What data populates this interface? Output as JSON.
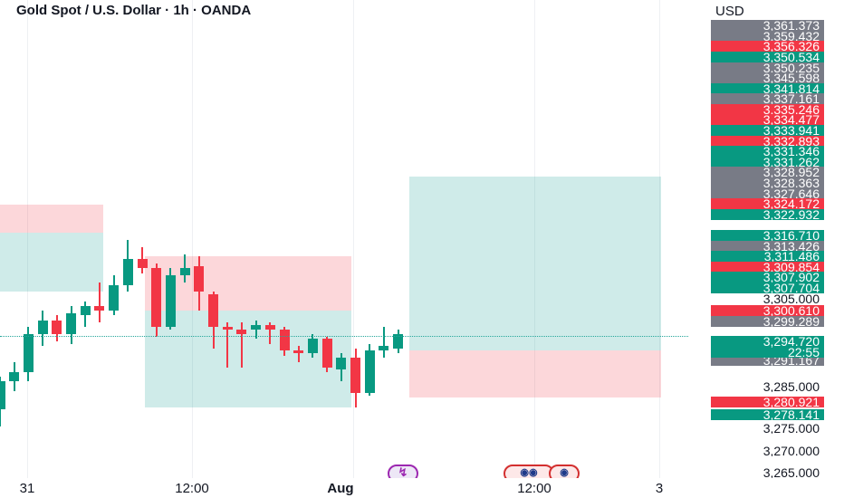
{
  "header": {
    "title": "Gold Spot / U.S. Dollar · 1h · OANDA"
  },
  "price_axis": {
    "currency": "USD",
    "labels": [
      {
        "text": "3,361.373",
        "kind": "gray"
      },
      {
        "text": "3,359.432",
        "kind": "gray"
      },
      {
        "text": "3,356.326",
        "kind": "red"
      },
      {
        "text": "3,350.534",
        "kind": "green"
      },
      {
        "text": "3,350.235",
        "kind": "gray"
      },
      {
        "text": "3,345.598",
        "kind": "gray"
      },
      {
        "text": "3,341.814",
        "kind": "green"
      },
      {
        "text": "3,337.161",
        "kind": "gray"
      },
      {
        "text": "3,335.246",
        "kind": "red"
      },
      {
        "text": "3,334.477",
        "kind": "red"
      },
      {
        "text": "3,333.941",
        "kind": "green"
      },
      {
        "text": "3,332.893",
        "kind": "red"
      },
      {
        "text": "3,331.346",
        "kind": "green"
      },
      {
        "text": "3,331.262",
        "kind": "green"
      },
      {
        "text": "3,328.952",
        "kind": "gray"
      },
      {
        "text": "3,328.363",
        "kind": "gray"
      },
      {
        "text": "3,327.646",
        "kind": "gray"
      },
      {
        "text": "3,324.172",
        "kind": "red"
      },
      {
        "text": "3,322.932",
        "kind": "green"
      },
      {
        "text": "3,316.710",
        "kind": "green"
      },
      {
        "text": "3,313.426",
        "kind": "gray"
      },
      {
        "text": "3,311.486",
        "kind": "green"
      },
      {
        "text": "3,309.854",
        "kind": "red"
      },
      {
        "text": "3,307.902",
        "kind": "green"
      },
      {
        "text": "3,307.704",
        "kind": "green"
      },
      {
        "text": "3,305.000",
        "kind": "axis"
      },
      {
        "text": "3,300.610",
        "kind": "red"
      },
      {
        "text": "3,299.289",
        "kind": "gray"
      },
      {
        "text": "3,291.167",
        "kind": "gray"
      },
      {
        "text": "3,285.000",
        "kind": "axis"
      },
      {
        "text": "3,280.921",
        "kind": "red"
      },
      {
        "text": "3,278.141",
        "kind": "green"
      },
      {
        "text": "3,275.000",
        "kind": "axis"
      },
      {
        "text": "3,270.000",
        "kind": "axis"
      },
      {
        "text": "3,265.000",
        "kind": "axis"
      }
    ],
    "current": {
      "price": "3,294.720",
      "countdown": "22:55"
    }
  },
  "time_axis": {
    "labels": [
      "31",
      "12:00",
      "Aug",
      "12:00",
      "3"
    ]
  },
  "colors": {
    "up": "#089981",
    "down": "#f23645",
    "gray_tag": "#787b86",
    "green_zone": "rgba(38,166,154,0.22)",
    "red_zone": "rgba(242,54,69,0.20)"
  },
  "chart_data": {
    "type": "candlestick",
    "symbol": "XAUUSD",
    "interval": "1h",
    "ylim": [
      3263,
      3366
    ],
    "candles": [
      {
        "o": 3279.0,
        "h": 3286.0,
        "l": 3275.5,
        "c": 3285.0
      },
      {
        "o": 3285.0,
        "h": 3289.0,
        "l": 3283.0,
        "c": 3287.0
      },
      {
        "o": 3287.0,
        "h": 3296.5,
        "l": 3285.0,
        "c": 3295.0
      },
      {
        "o": 3295.0,
        "h": 3300.0,
        "l": 3292.5,
        "c": 3298.0
      },
      {
        "o": 3298.0,
        "h": 3299.0,
        "l": 3293.5,
        "c": 3295.0
      },
      {
        "o": 3295.0,
        "h": 3301.0,
        "l": 3293.0,
        "c": 3299.5
      },
      {
        "o": 3299.0,
        "h": 3302.0,
        "l": 3296.5,
        "c": 3301.0
      },
      {
        "o": 3301.0,
        "h": 3306.0,
        "l": 3297.5,
        "c": 3300.0
      },
      {
        "o": 3300.0,
        "h": 3307.5,
        "l": 3299.0,
        "c": 3305.5
      },
      {
        "o": 3305.5,
        "h": 3315.0,
        "l": 3304.0,
        "c": 3311.0
      },
      {
        "o": 3311.0,
        "h": 3313.5,
        "l": 3308.0,
        "c": 3309.0
      },
      {
        "o": 3309.0,
        "h": 3310.0,
        "l": 3294.5,
        "c": 3296.5
      },
      {
        "o": 3296.5,
        "h": 3309.0,
        "l": 3296.0,
        "c": 3307.5
      },
      {
        "o": 3307.5,
        "h": 3312.0,
        "l": 3306.0,
        "c": 3309.0
      },
      {
        "o": 3309.5,
        "h": 3311.5,
        "l": 3300.0,
        "c": 3304.0
      },
      {
        "o": 3303.5,
        "h": 3304.0,
        "l": 3292.0,
        "c": 3296.5
      },
      {
        "o": 3296.5,
        "h": 3297.5,
        "l": 3288.0,
        "c": 3296.0
      },
      {
        "o": 3296.0,
        "h": 3297.5,
        "l": 3288.0,
        "c": 3295.0
      },
      {
        "o": 3296.0,
        "h": 3298.0,
        "l": 3294.0,
        "c": 3297.0
      },
      {
        "o": 3297.0,
        "h": 3297.5,
        "l": 3293.0,
        "c": 3296.0
      },
      {
        "o": 3296.0,
        "h": 3296.5,
        "l": 3290.5,
        "c": 3291.5
      },
      {
        "o": 3291.5,
        "h": 3292.5,
        "l": 3289.0,
        "c": 3291.0
      },
      {
        "o": 3291.0,
        "h": 3295.0,
        "l": 3290.0,
        "c": 3294.0
      },
      {
        "o": 3294.0,
        "h": 3294.5,
        "l": 3287.0,
        "c": 3288.0
      },
      {
        "o": 3287.5,
        "h": 3291.0,
        "l": 3285.0,
        "c": 3290.0
      },
      {
        "o": 3290.0,
        "h": 3292.0,
        "l": 3279.5,
        "c": 3282.5
      },
      {
        "o": 3282.5,
        "h": 3293.0,
        "l": 3282.0,
        "c": 3291.5
      },
      {
        "o": 3291.5,
        "h": 3296.5,
        "l": 3290.0,
        "c": 3292.5
      },
      {
        "o": 3292.0,
        "h": 3296.0,
        "l": 3291.0,
        "c": 3295.0
      }
    ],
    "zones": [
      {
        "kind": "red",
        "top": 3322.5,
        "bottom": 3316.5
      },
      {
        "kind": "green",
        "top": 3316.5,
        "bottom": 3304.0
      },
      {
        "kind": "red",
        "top": 3311.5,
        "bottom": 3300.0
      },
      {
        "kind": "green",
        "top": 3300.0,
        "bottom": 3279.5
      },
      {
        "kind": "green",
        "top": 3328.5,
        "bottom": 3291.5
      },
      {
        "kind": "red",
        "top": 3291.5,
        "bottom": 3281.5
      }
    ]
  }
}
